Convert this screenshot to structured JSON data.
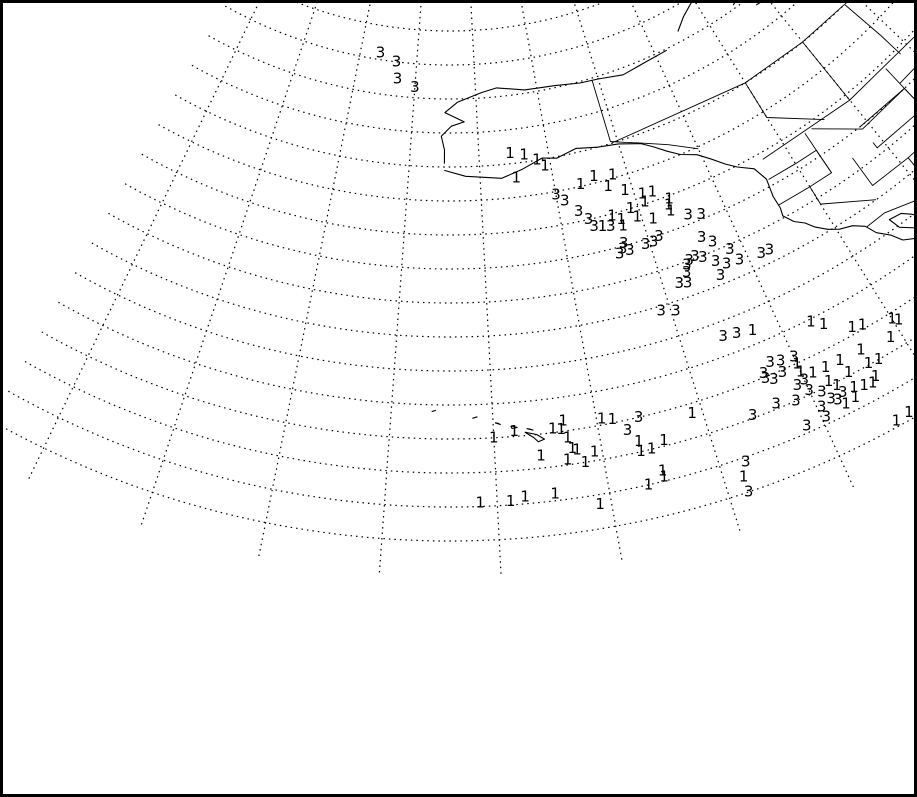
{
  "map": {
    "projection": "conic",
    "graticule": "dotted",
    "features": [
      "Alaska",
      "Canada",
      "western United States",
      "Mexico",
      "Hawaii"
    ]
  },
  "markers": [
    {
      "label": "3",
      "lat": 76.0,
      "lon": -176.5
    },
    {
      "label": "3",
      "lat": 75.0,
      "lon": -173.5
    },
    {
      "label": "3",
      "lat": 72.5,
      "lon": -173.0
    },
    {
      "label": "3",
      "lat": 71.5,
      "lon": -170.0
    },
    {
      "label": "1",
      "lat": 61.5,
      "lon": -155.5
    },
    {
      "label": "1",
      "lat": 61.0,
      "lon": -153.5
    },
    {
      "label": "1",
      "lat": 60.0,
      "lon": -151.8
    },
    {
      "label": "1",
      "lat": 59.0,
      "lon": -150.8
    },
    {
      "label": "1",
      "lat": 57.8,
      "lon": -155.0
    },
    {
      "label": "3",
      "lat": 54.5,
      "lon": -150.0
    },
    {
      "label": "3",
      "lat": 53.4,
      "lon": -149.0
    },
    {
      "label": "1",
      "lat": 55.3,
      "lon": -146.5
    },
    {
      "label": "1",
      "lat": 56.0,
      "lon": -144.5
    },
    {
      "label": "1",
      "lat": 55.5,
      "lon": -142.0
    },
    {
      "label": "1",
      "lat": 54.0,
      "lon": -143.0
    },
    {
      "label": "1",
      "lat": 52.8,
      "lon": -141.0
    },
    {
      "label": "1",
      "lat": 51.5,
      "lon": -139.0
    },
    {
      "label": "1",
      "lat": 51.3,
      "lon": -137.7
    },
    {
      "label": "3",
      "lat": 51.5,
      "lon": -147.5
    },
    {
      "label": "3",
      "lat": 50.0,
      "lon": -146.5
    },
    {
      "label": "1",
      "lat": 49.7,
      "lon": -143.5
    },
    {
      "label": "1",
      "lat": 50.0,
      "lon": -141.0
    },
    {
      "label": "1",
      "lat": 50.3,
      "lon": -139.0
    },
    {
      "label": "1",
      "lat": 49.5,
      "lon": -136.0
    },
    {
      "label": "3",
      "lat": 48.8,
      "lon": -146.0
    },
    {
      "label": "1",
      "lat": 48.5,
      "lon": -145.0
    },
    {
      "label": "3",
      "lat": 48.2,
      "lon": -144.0
    },
    {
      "label": "1",
      "lat": 48.8,
      "lon": -142.5
    },
    {
      "label": "1",
      "lat": 47.8,
      "lon": -142.5
    },
    {
      "label": "1",
      "lat": 48.5,
      "lon": -140.5
    },
    {
      "label": "1",
      "lat": 47.5,
      "lon": -138.7
    },
    {
      "label": "1",
      "lat": 48.7,
      "lon": -136.3
    },
    {
      "label": "1",
      "lat": 47.8,
      "lon": -136.3
    },
    {
      "label": "3",
      "lat": 46.3,
      "lon": -134.5
    },
    {
      "label": "3",
      "lat": 45.7,
      "lon": -133.0
    },
    {
      "label": "3",
      "lat": 45.3,
      "lon": -143.0
    },
    {
      "label": "3",
      "lat": 44.6,
      "lon": -143.3
    },
    {
      "label": "3",
      "lat": 44.0,
      "lon": -143.8
    },
    {
      "label": "3",
      "lat": 44.1,
      "lon": -142.5
    },
    {
      "label": "3",
      "lat": 44.3,
      "lon": -140.5
    },
    {
      "label": "3",
      "lat": 44.3,
      "lon": -139.5
    },
    {
      "label": "3",
      "lat": 44.8,
      "lon": -138.7
    },
    {
      "label": "3",
      "lat": 42.5,
      "lon": -134.0
    },
    {
      "label": "3",
      "lat": 41.3,
      "lon": -133.0
    },
    {
      "label": "3",
      "lat": 40.3,
      "lon": -135.5
    },
    {
      "label": "3",
      "lat": 40.0,
      "lon": -136.3
    },
    {
      "label": "3",
      "lat": 39.5,
      "lon": -136.7
    },
    {
      "label": "3",
      "lat": 38.5,
      "lon": -137.0
    },
    {
      "label": "3",
      "lat": 39.7,
      "lon": -134.7
    },
    {
      "label": "3",
      "lat": 38.5,
      "lon": -133.5
    },
    {
      "label": "3",
      "lat": 39.3,
      "lon": -131.5
    },
    {
      "label": "3",
      "lat": 37.5,
      "lon": -132.5
    },
    {
      "label": "3",
      "lat": 37.3,
      "lon": -131.0
    },
    {
      "label": "3",
      "lat": 36.8,
      "lon": -128.5
    },
    {
      "label": "3",
      "lat": 36.8,
      "lon": -127.5
    },
    {
      "label": "3",
      "lat": 37.3,
      "lon": -138.2
    },
    {
      "label": "3",
      "lat": 37.0,
      "lon": -137.3
    },
    {
      "label": "3",
      "lat": 36.3,
      "lon": -133.6
    },
    {
      "label": "3",
      "lat": 34.3,
      "lon": -141.0
    },
    {
      "label": "3",
      "lat": 33.6,
      "lon": -139.5
    },
    {
      "label": "3",
      "lat": 27.8,
      "lon": -135.7
    },
    {
      "label": "3",
      "lat": 27.5,
      "lon": -134.3
    },
    {
      "label": "1",
      "lat": 27.0,
      "lon": -132.7
    },
    {
      "label": "1",
      "lat": 24.6,
      "lon": -127.0
    },
    {
      "label": "1",
      "lat": 23.4,
      "lon": -126.0
    },
    {
      "label": "1",
      "lat": 21.0,
      "lon": -123.7
    },
    {
      "label": "1",
      "lat": 20.6,
      "lon": -122.7
    },
    {
      "label": "3",
      "lat": 21.7,
      "lon": -132.3
    },
    {
      "label": "3",
      "lat": 21.3,
      "lon": -131.3
    },
    {
      "label": "3",
      "lat": 21.0,
      "lon": -130.0
    },
    {
      "label": "3",
      "lat": 20.6,
      "lon": -133.3
    },
    {
      "label": "3",
      "lat": 19.8,
      "lon": -133.3
    },
    {
      "label": "3",
      "lat": 19.2,
      "lon": -132.6
    },
    {
      "label": "3",
      "lat": 19.6,
      "lon": -131.6
    },
    {
      "label": "1",
      "lat": 19.9,
      "lon": -130.0
    },
    {
      "label": "1",
      "lat": 18.6,
      "lon": -130.0
    },
    {
      "label": "1",
      "lat": 17.7,
      "lon": -129.0
    },
    {
      "label": "3",
      "lat": 17.0,
      "lon": -130.8
    },
    {
      "label": "3",
      "lat": 17.3,
      "lon": -130.0
    },
    {
      "label": "1",
      "lat": 17.6,
      "lon": -127.7
    },
    {
      "label": "1",
      "lat": 17.6,
      "lon": -126.2
    },
    {
      "label": "1",
      "lat": 17.5,
      "lon": -124.0
    },
    {
      "label": "1",
      "lat": 19.1,
      "lon": -120.0
    },
    {
      "label": "1",
      "lat": 18.5,
      "lon": -119.5
    },
    {
      "label": "1",
      "lat": 16.9,
      "lon": -121.0
    },
    {
      "label": "3",
      "lat": 15.7,
      "lon": -133.3
    },
    {
      "label": "3",
      "lat": 15.0,
      "lon": -131.5
    },
    {
      "label": "3",
      "lat": 15.4,
      "lon": -135.7
    },
    {
      "label": "3",
      "lat": 15.6,
      "lon": -130.0
    },
    {
      "label": "1",
      "lat": 15.6,
      "lon": -128.0
    },
    {
      "label": "1",
      "lat": 15.4,
      "lon": -126.0
    },
    {
      "label": "3",
      "lat": 14.6,
      "lon": -129.0
    },
    {
      "label": "1",
      "lat": 14.5,
      "lon": -127.5
    },
    {
      "label": "1",
      "lat": 15.2,
      "lon": -124.0
    },
    {
      "label": "1",
      "lat": 15.0,
      "lon": -123.0
    },
    {
      "label": "3",
      "lat": 13.1,
      "lon": -128.5
    },
    {
      "label": "3",
      "lat": 13.2,
      "lon": -127.3
    },
    {
      "label": "3",
      "lat": 12.6,
      "lon": -129.6
    },
    {
      "label": "1",
      "lat": 13.1,
      "lon": -126.2
    },
    {
      "label": "1",
      "lat": 12.7,
      "lon": -125.3
    },
    {
      "label": "1",
      "lat": 11.7,
      "lon": -126.5
    },
    {
      "label": "1",
      "lat": 11.5,
      "lon": -127.5
    },
    {
      "label": "1",
      "lat": 12.4,
      "lon": -124.5
    },
    {
      "label": "3",
      "lat": 11.0,
      "lon": -131.5
    },
    {
      "label": "3",
      "lat": 11.0,
      "lon": -129.6
    },
    {
      "label": "3",
      "lat": 12.5,
      "lon": -128.0
    },
    {
      "label": "1",
      "lat": 13.0,
      "lon": -124.0
    },
    {
      "label": "1",
      "lat": 13.4,
      "lon": -118.5
    },
    {
      "label": "1",
      "lat": 14.0,
      "lon": -117.3
    },
    {
      "label": "1",
      "lat": 13.6,
      "lon": -116.7
    },
    {
      "label": "1",
      "lat": 16.5,
      "lon": -117.5
    },
    {
      "label": "1",
      "lat": 17.6,
      "lon": -116.0
    },
    {
      "label": "1",
      "lat": 16.0,
      "lon": -114.5
    },
    {
      "label": "1",
      "lat": 10.3,
      "lon": -116.0
    },
    {
      "label": "1",
      "lat": 9.3,
      "lon": -115.4
    },
    {
      "label": "1",
      "lat": 9.8,
      "lon": -111.0
    },
    {
      "label": "1",
      "lat": 5.8,
      "lon": -124.3
    },
    {
      "label": "1",
      "lat": 6.0,
      "lon": -123.0
    },
    {
      "label": "1",
      "lat": 6.0,
      "lon": -121.7
    },
    {
      "label": "1",
      "lat": 6.5,
      "lon": -119.7
    },
    {
      "label": "3",
      "lat": 9.3,
      "lon": -137.7
    },
    {
      "label": "1",
      "lat": 7.3,
      "lon": -138.3
    },
    {
      "label": "3",
      "lat": 5.0,
      "lon": -138.3
    },
    {
      "label": "1",
      "lat": 21.5,
      "lon": -153.2
    },
    {
      "label": "1",
      "lat": 20.7,
      "lon": -158.0
    },
    {
      "label": "1",
      "lat": 20.3,
      "lon": -153.5
    },
    {
      "label": "1",
      "lat": 20.5,
      "lon": -154.3
    },
    {
      "label": "1",
      "lat": 20.9,
      "lon": -149.5
    },
    {
      "label": "1",
      "lat": 20.5,
      "lon": -148.5
    },
    {
      "label": "3",
      "lat": 20.0,
      "lon": -146.0
    },
    {
      "label": "1",
      "lat": 20.0,
      "lon": -160.0
    },
    {
      "label": "1",
      "lat": 18.9,
      "lon": -153.0
    },
    {
      "label": "3",
      "lat": 18.5,
      "lon": -147.3
    },
    {
      "label": "1",
      "lat": 17.3,
      "lon": -152.7
    },
    {
      "label": "1",
      "lat": 17.0,
      "lon": -152.3
    },
    {
      "label": "1",
      "lat": 16.8,
      "lon": -155.7
    },
    {
      "label": "1",
      "lat": 16.3,
      "lon": -150.7
    },
    {
      "label": "1",
      "lat": 15.7,
      "lon": -153.3
    },
    {
      "label": "1",
      "lat": 15.0,
      "lon": -151.7
    },
    {
      "label": "1",
      "lat": 16.5,
      "lon": -146.5
    },
    {
      "label": "1",
      "lat": 15.0,
      "lon": -146.5
    },
    {
      "label": "1",
      "lat": 15.0,
      "lon": -145.5
    },
    {
      "label": "1",
      "lat": 15.8,
      "lon": -144.2
    },
    {
      "label": "1",
      "lat": 18.5,
      "lon": -141.0
    },
    {
      "label": "1",
      "lat": 10.5,
      "lon": -161.5
    },
    {
      "label": "1",
      "lat": 10.5,
      "lon": -158.8
    },
    {
      "label": "1",
      "lat": 11.0,
      "lon": -157.5
    },
    {
      "label": "1",
      "lat": 11.0,
      "lon": -154.8
    },
    {
      "label": "1",
      "lat": 10.0,
      "lon": -146.5
    },
    {
      "label": "1",
      "lat": 10.6,
      "lon": -145.0
    },
    {
      "label": "1",
      "lat": 11.5,
      "lon": -145.0
    },
    {
      "label": "1",
      "lat": 8.5,
      "lon": -151.0
    }
  ]
}
